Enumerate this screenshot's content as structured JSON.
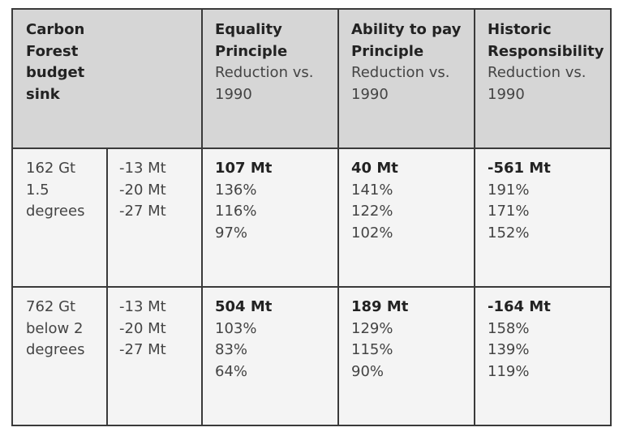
{
  "header": {
    "col1": [
      "Carbon",
      "budget"
    ],
    "col1_forest": [
      "Forest",
      "sink"
    ],
    "equality": {
      "title": [
        "Equality",
        "Principle"
      ],
      "sub": [
        "Reduction vs.",
        "1990"
      ]
    },
    "ability": {
      "title": [
        "Ability to pay",
        "Principle"
      ],
      "sub": [
        "Reduction vs.",
        "1990"
      ]
    },
    "historic": {
      "title": [
        "Historic",
        "Responsibility"
      ],
      "sub": [
        "Reduction vs.",
        "1990"
      ]
    }
  },
  "rows": [
    {
      "budget": [
        "162 Gt",
        "1.5",
        "degrees"
      ],
      "sink": [
        "-13 Mt",
        "-20 Mt",
        "-27 Mt"
      ],
      "equality": {
        "total": "107 Mt",
        "pcts": [
          "136%",
          "116%",
          "97%"
        ]
      },
      "ability": {
        "total": "40 Mt",
        "pcts": [
          "141%",
          "122%",
          "102%"
        ]
      },
      "historic": {
        "total": "-561 Mt",
        "pcts": [
          "191%",
          "171%",
          "152%"
        ]
      }
    },
    {
      "budget": [
        "762 Gt",
        "below 2",
        "degrees"
      ],
      "sink": [
        "-13 Mt",
        "-20 Mt",
        "-27 Mt"
      ],
      "equality": {
        "total": "504 Mt",
        "pcts": [
          "103%",
          "83%",
          "64%"
        ]
      },
      "ability": {
        "total": "189 Mt",
        "pcts": [
          "129%",
          "115%",
          "90%"
        ]
      },
      "historic": {
        "total": "-164 Mt",
        "pcts": [
          "158%",
          "139%",
          "119%"
        ]
      }
    }
  ]
}
